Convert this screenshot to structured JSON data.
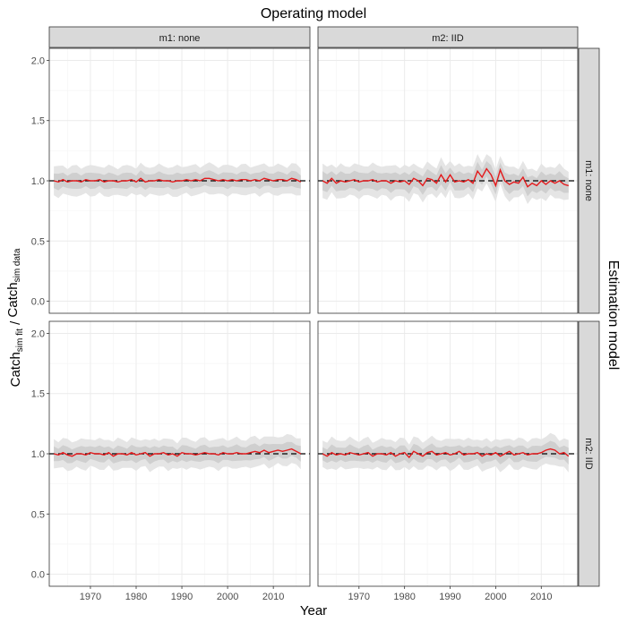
{
  "chart_data": {
    "type": "line",
    "title": "Operating model",
    "xlabel": "Year",
    "ylabel_main": "Catch",
    "ylabel_sub1": "sim fit",
    "ylabel_sep": " / ",
    "ylabel_sub2": "sim data",
    "right_label": "Estimation model",
    "col_strips": [
      "m1: none",
      "m2: IID"
    ],
    "row_strips": [
      "m1: none",
      "m2: IID"
    ],
    "xlim": [
      1961,
      2018
    ],
    "ylim": [
      -0.1,
      2.1
    ],
    "x_ticks": [
      1970,
      1980,
      1990,
      2000,
      2010
    ],
    "y_ticks": [
      0.0,
      0.5,
      1.0,
      1.5,
      2.0
    ],
    "y_tick_labels": [
      "0.0",
      "0.5",
      "1.0",
      "1.5",
      "2.0"
    ],
    "reference_line": 1.0,
    "colors": {
      "line": "#e41a1c",
      "band_outer": "#e5e5e5",
      "band_inner": "#cfcfcf",
      "strip": "#d9d9d9",
      "grid": "#ebebeb",
      "reference": "#000000"
    },
    "years": [
      1962,
      1963,
      1964,
      1965,
      1966,
      1967,
      1968,
      1969,
      1970,
      1971,
      1972,
      1973,
      1974,
      1975,
      1976,
      1977,
      1978,
      1979,
      1980,
      1981,
      1982,
      1983,
      1984,
      1985,
      1986,
      1987,
      1988,
      1989,
      1990,
      1991,
      1992,
      1993,
      1994,
      1995,
      1996,
      1997,
      1998,
      1999,
      2000,
      2001,
      2002,
      2003,
      2004,
      2005,
      2006,
      2007,
      2008,
      2009,
      2010,
      2011,
      2012,
      2013,
      2014,
      2015,
      2016
    ],
    "panels": [
      {
        "row": 0,
        "col": 0,
        "median": [
          1.0,
          0.99,
          1.01,
          0.99,
          1.0,
          1.0,
          0.99,
          1.01,
          1.0,
          1.0,
          1.01,
          0.99,
          1.0,
          1.0,
          0.99,
          1.0,
          1.0,
          1.01,
          0.99,
          1.02,
          0.99,
          1.0,
          1.0,
          1.01,
          1.0,
          1.0,
          0.99,
          1.0,
          1.0,
          1.01,
          1.0,
          1.01,
          1.0,
          1.02,
          1.02,
          1.01,
          1.0,
          1.01,
          1.0,
          1.01,
          1.0,
          1.01,
          1.01,
          1.0,
          1.01,
          1.0,
          1.02,
          1.01,
          1.0,
          1.01,
          1.01,
          1.0,
          1.02,
          1.01,
          0.99
        ],
        "outer_halfwidth": 0.12,
        "inner_halfwidth": 0.06
      },
      {
        "row": 0,
        "col": 1,
        "median": [
          1.0,
          0.98,
          1.02,
          0.98,
          1.0,
          0.99,
          1.0,
          1.01,
          0.99,
          1.0,
          1.0,
          1.01,
          0.99,
          1.0,
          1.0,
          0.98,
          1.0,
          0.99,
          1.0,
          0.97,
          1.02,
          1.0,
          0.96,
          1.02,
          1.01,
          0.98,
          1.05,
          0.99,
          1.05,
          0.99,
          1.0,
          0.99,
          1.01,
          0.98,
          1.08,
          1.03,
          1.1,
          1.05,
          0.96,
          1.09,
          1.0,
          0.97,
          0.99,
          0.98,
          1.03,
          0.95,
          0.98,
          0.96,
          1.0,
          0.97,
          1.0,
          0.98,
          1.0,
          0.97,
          0.96
        ],
        "outer_halfwidth": 0.13,
        "inner_halfwidth": 0.07
      },
      {
        "row": 1,
        "col": 0,
        "median": [
          1.0,
          0.99,
          1.01,
          0.99,
          0.98,
          1.0,
          1.0,
          0.99,
          1.01,
          1.0,
          1.0,
          0.99,
          1.01,
          0.98,
          1.0,
          1.0,
          0.99,
          1.01,
          0.99,
          1.0,
          1.01,
          0.98,
          1.0,
          1.0,
          1.01,
          0.99,
          1.0,
          0.98,
          1.01,
          1.0,
          1.0,
          0.99,
          1.0,
          1.01,
          1.0,
          1.0,
          0.99,
          1.01,
          1.0,
          1.0,
          1.01,
          1.0,
          1.0,
          1.01,
          1.02,
          1.01,
          1.03,
          1.01,
          1.02,
          1.03,
          1.02,
          1.03,
          1.04,
          1.02,
          1.0
        ],
        "outer_halfwidth": 0.12,
        "inner_halfwidth": 0.06
      },
      {
        "row": 1,
        "col": 1,
        "median": [
          1.0,
          0.98,
          1.01,
          0.99,
          1.0,
          0.99,
          1.01,
          1.0,
          0.99,
          1.0,
          1.01,
          0.98,
          1.0,
          1.0,
          0.99,
          1.01,
          0.98,
          1.0,
          1.01,
          0.97,
          1.02,
          1.0,
          0.98,
          1.01,
          1.02,
          0.99,
          1.0,
          1.01,
          0.99,
          1.0,
          1.02,
          0.99,
          1.0,
          1.0,
          1.01,
          0.98,
          1.0,
          0.99,
          1.01,
          0.98,
          1.0,
          1.02,
          0.99,
          1.0,
          1.01,
          0.99,
          1.0,
          1.0,
          1.01,
          1.03,
          1.04,
          1.03,
          1.0,
          1.01,
          0.98
        ],
        "outer_halfwidth": 0.12,
        "inner_halfwidth": 0.06
      }
    ]
  }
}
